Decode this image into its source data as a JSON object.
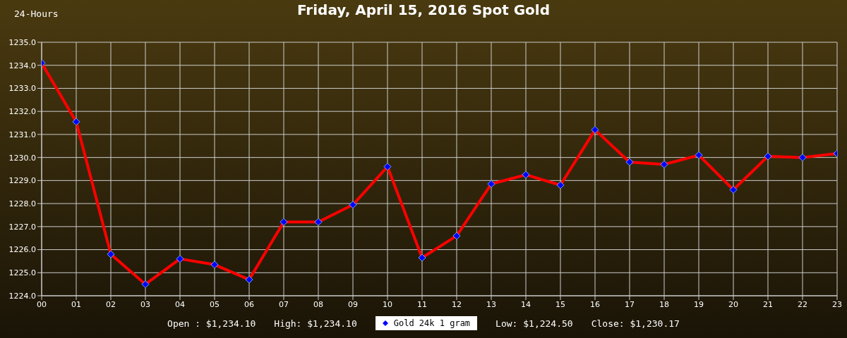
{
  "chart_data": {
    "type": "line",
    "title": "Friday, April 15, 2016 Spot Gold",
    "annotations": [
      "24-Hours",
      "Open : $1,234.10",
      "High: $1,234.10",
      "Low: $1,224.50",
      "Close: $1,230.17"
    ],
    "categories": [
      "00",
      "01",
      "02",
      "03",
      "04",
      "05",
      "06",
      "07",
      "08",
      "09",
      "10",
      "11",
      "12",
      "13",
      "14",
      "15",
      "16",
      "17",
      "18",
      "19",
      "20",
      "21",
      "22",
      "23"
    ],
    "series": [
      {
        "name": "Gold 24k 1 gram",
        "color": "#ff0000",
        "values": [
          1234.1,
          1231.55,
          1225.8,
          1224.5,
          1225.6,
          1225.35,
          1224.7,
          1227.2,
          1227.2,
          1227.95,
          1229.6,
          1225.65,
          1226.6,
          1228.85,
          1229.25,
          1228.8,
          1231.2,
          1229.8,
          1229.7,
          1230.1,
          1228.6,
          1230.05,
          1230.0,
          1230.17
        ]
      }
    ],
    "ylim": [
      1224,
      1235
    ],
    "yticks": [
      {
        "value": 1224,
        "label": "1224.0"
      },
      {
        "value": 1225,
        "label": "1225.0"
      },
      {
        "value": 1226,
        "label": "1226.0"
      },
      {
        "value": 1227,
        "label": "1227.0"
      },
      {
        "value": 1228,
        "label": "1228.0"
      },
      {
        "value": 1229,
        "label": "1229.0"
      },
      {
        "value": 1230,
        "label": "1230.0"
      },
      {
        "value": 1231,
        "label": "1231.0"
      },
      {
        "value": 1232,
        "label": "1232.0"
      },
      {
        "value": 1233,
        "label": "1233.0"
      },
      {
        "value": 1234,
        "label": "1234.0"
      },
      {
        "value": 1235,
        "label": "1235.0"
      }
    ],
    "grid": true,
    "legend": "bottom",
    "marker": "diamond",
    "line_style": "solid"
  }
}
